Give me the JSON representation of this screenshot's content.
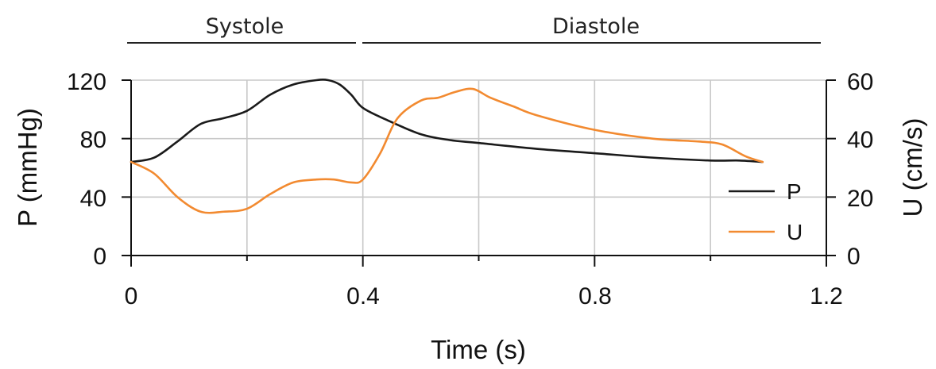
{
  "chart_data": {
    "type": "line",
    "xlabel": "Time (s)",
    "ylabel_left": "P (mmHg)",
    "ylabel_right": "U (cm/s)",
    "xlim": [
      0,
      1.2
    ],
    "ylim_left": [
      0,
      120
    ],
    "ylim_right": [
      0,
      60
    ],
    "x_ticks": [
      "0",
      "0.4",
      "0.8",
      "1.2"
    ],
    "y_ticks_left": [
      "0",
      "40",
      "80",
      "120"
    ],
    "y_ticks_right": [
      "0",
      "20",
      "40",
      "60"
    ],
    "grid": true,
    "legend_position": "bottom-right",
    "phases": [
      {
        "label": "Systole",
        "start": 0.0,
        "end": 0.39
      },
      {
        "label": "Diastole",
        "start": 0.4,
        "end": 1.19
      }
    ],
    "series": [
      {
        "name": "P",
        "axis": "left",
        "color": "#1a1a1a",
        "x": [
          0,
          0.04,
          0.08,
          0.12,
          0.16,
          0.2,
          0.24,
          0.28,
          0.32,
          0.34,
          0.36,
          0.38,
          0.4,
          0.44,
          0.5,
          0.55,
          0.6,
          0.7,
          0.8,
          0.9,
          1.0,
          1.05,
          1.09
        ],
        "values": [
          64,
          67,
          78,
          90,
          94,
          99,
          110,
          117,
          120,
          120,
          117,
          110,
          101,
          93,
          83,
          79,
          77,
          73,
          70,
          67,
          65,
          65,
          64
        ]
      },
      {
        "name": "U",
        "axis": "right",
        "color": "#f28a30",
        "x": [
          0,
          0.04,
          0.08,
          0.12,
          0.16,
          0.2,
          0.24,
          0.28,
          0.32,
          0.35,
          0.38,
          0.4,
          0.43,
          0.46,
          0.5,
          0.53,
          0.56,
          0.59,
          0.62,
          0.66,
          0.7,
          0.8,
          0.9,
          0.98,
          1.02,
          1.06,
          1.09
        ],
        "values": [
          32,
          28,
          20,
          15,
          15,
          16,
          21,
          25,
          26,
          26,
          25,
          26,
          35,
          47,
          53,
          54,
          56,
          57,
          54,
          51,
          48,
          43,
          40,
          39,
          38,
          34,
          32
        ]
      }
    ]
  }
}
